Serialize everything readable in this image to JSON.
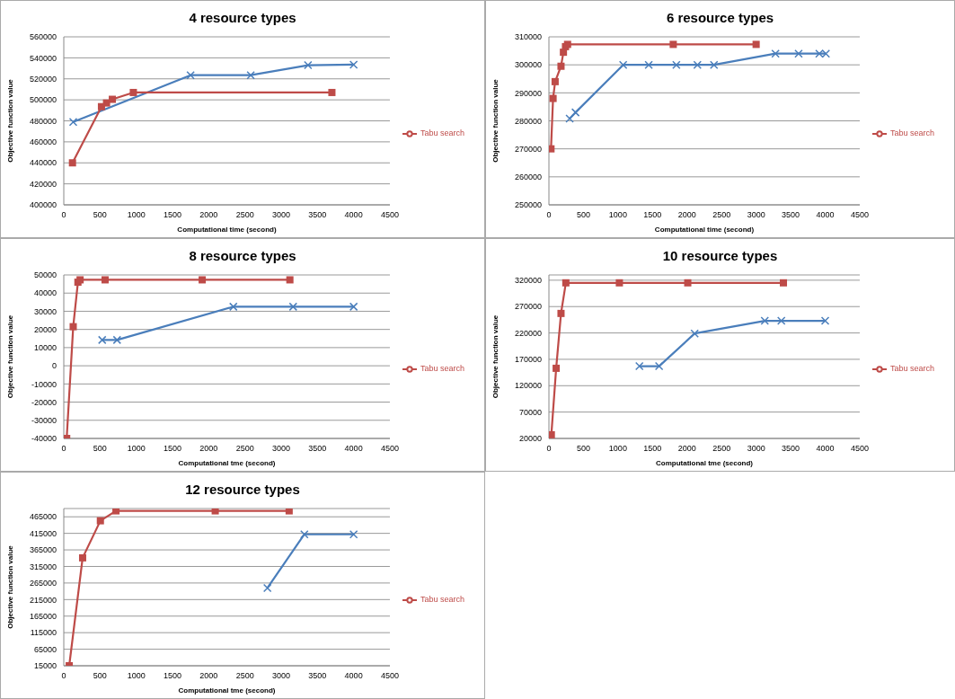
{
  "chart_data": [
    {
      "type": "line",
      "title": "4 resource types",
      "xlabel": "Computational time (second)",
      "ylabel": "Objective function value",
      "xlim": [
        0,
        4500
      ],
      "xticks": [
        0,
        500,
        1000,
        1500,
        2000,
        2500,
        3000,
        3500,
        4000,
        4500
      ],
      "ylim": [
        400000,
        560000
      ],
      "yticks": [
        400000,
        420000,
        440000,
        460000,
        480000,
        500000,
        520000,
        540000,
        560000
      ],
      "grid": "y",
      "legend": "right",
      "series": [
        {
          "color": "#4a7ebb",
          "marker": "cross",
          "x": [
            130,
            1750,
            2580,
            3370,
            4000
          ],
          "values": [
            479000,
            523500,
            523500,
            533000,
            533500
          ]
        },
        {
          "name": "Tabu search",
          "color": "#be4b48",
          "marker": "square",
          "x": [
            120,
            520,
            590,
            670,
            960,
            3700
          ],
          "values": [
            440000,
            493500,
            497000,
            500500,
            507000,
            507000
          ]
        }
      ]
    },
    {
      "type": "line",
      "title": "6 resource types",
      "xlabel": "Computational time (second)",
      "ylabel": "Objective function  value",
      "xlim": [
        0,
        4500
      ],
      "xticks": [
        0,
        500,
        1000,
        1500,
        2000,
        2500,
        3000,
        3500,
        4000,
        4500
      ],
      "ylim": [
        250000,
        310000
      ],
      "yticks": [
        250000,
        260000,
        270000,
        280000,
        290000,
        300000,
        310000
      ],
      "grid": "y",
      "legend": "right",
      "series": [
        {
          "color": "#4a7ebb",
          "marker": "cross",
          "x": [
            300,
            385,
            1075,
            1445,
            1845,
            2150,
            2390,
            3280,
            3615,
            3915,
            4010
          ],
          "values": [
            280800,
            283000,
            300000,
            300000,
            300000,
            300000,
            300000,
            304000,
            304000,
            304000,
            304000
          ]
        },
        {
          "name": "Tabu search",
          "color": "#be4b48",
          "marker": "square",
          "x": [
            30,
            60,
            90,
            175,
            210,
            240,
            270,
            1800,
            3000
          ],
          "values": [
            270000,
            288000,
            294000,
            299500,
            304500,
            306500,
            307300,
            307300,
            307300
          ]
        }
      ]
    },
    {
      "type": "line",
      "title": "8 resource types",
      "xlabel": "Computational tme (second)",
      "ylabel": "Objective function value",
      "xlim": [
        0,
        4500
      ],
      "xticks": [
        0,
        500,
        1000,
        1500,
        2000,
        2500,
        3000,
        3500,
        4000,
        4500
      ],
      "ylim": [
        -40000,
        50000
      ],
      "yticks": [
        -40000,
        -30000,
        -20000,
        -10000,
        0,
        10000,
        20000,
        30000,
        40000,
        50000
      ],
      "grid": "y",
      "legend": "right",
      "series": [
        {
          "color": "#4a7ebb",
          "marker": "cross",
          "x": [
            530,
            735,
            2340,
            3165,
            4000
          ],
          "values": [
            14200,
            14200,
            32500,
            32500,
            32500
          ]
        },
        {
          "name": "Tabu search",
          "color": "#be4b48",
          "marker": "square",
          "x": [
            40,
            130,
            195,
            225,
            570,
            1910,
            3120
          ],
          "values": [
            -40000,
            21500,
            46000,
            47300,
            47300,
            47300,
            47300
          ]
        }
      ]
    },
    {
      "type": "line",
      "title": "10 resource types",
      "xlabel": "Computational tme (second)",
      "ylabel": "Objective function value",
      "xlim": [
        0,
        4500
      ],
      "xticks": [
        0,
        500,
        1000,
        1500,
        2000,
        2500,
        3000,
        3500,
        4000,
        4500
      ],
      "ylim": [
        20000,
        330000
      ],
      "yticks": [
        20000,
        70000,
        120000,
        170000,
        220000,
        270000,
        320000
      ],
      "grid": "y",
      "legend": "right",
      "series": [
        {
          "color": "#4a7ebb",
          "marker": "cross",
          "x": [
            1310,
            1595,
            2110,
            3125,
            3365,
            4000
          ],
          "values": [
            157000,
            157000,
            219000,
            243000,
            243000,
            243000
          ]
        },
        {
          "name": "Tabu search",
          "color": "#be4b48",
          "marker": "square",
          "x": [
            35,
            105,
            175,
            245,
            1020,
            2010,
            3395
          ],
          "values": [
            27000,
            153000,
            257000,
            315000,
            315000,
            315000,
            315000
          ]
        }
      ]
    },
    {
      "type": "line",
      "title": "12 resource types",
      "xlabel": "Computational tme (second)",
      "ylabel": "Objective function value",
      "xlim": [
        0,
        4500
      ],
      "xticks": [
        0,
        500,
        1000,
        1500,
        2000,
        2500,
        3000,
        3500,
        4000,
        4500
      ],
      "ylim": [
        15000,
        490000
      ],
      "yticks": [
        15000,
        65000,
        115000,
        165000,
        215000,
        265000,
        315000,
        365000,
        415000,
        465000
      ],
      "grid": "y",
      "legend": "right",
      "series": [
        {
          "color": "#4a7ebb",
          "marker": "cross",
          "x": [
            2810,
            3320,
            4000
          ],
          "values": [
            250000,
            412000,
            412000
          ]
        },
        {
          "name": "Tabu search",
          "color": "#be4b48",
          "marker": "square",
          "x": [
            75,
            260,
            505,
            720,
            2090,
            3110
          ],
          "values": [
            15000,
            341000,
            453000,
            483000,
            483000,
            483000
          ]
        }
      ]
    }
  ]
}
